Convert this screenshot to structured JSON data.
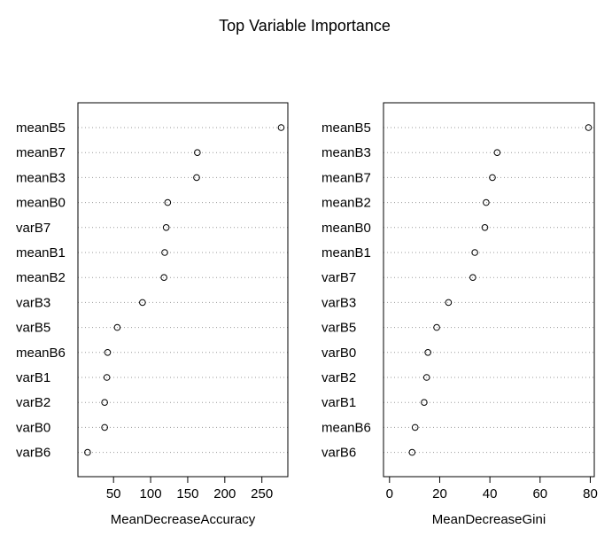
{
  "title": "Top Variable Importance",
  "chart_data": [
    {
      "type": "scatter",
      "style": "dotchart",
      "xlabel": "MeanDecreaseAccuracy",
      "xlim": [
        2,
        285
      ],
      "xticks": [
        50,
        100,
        150,
        200,
        250
      ],
      "grid": "dotted-horizontal",
      "categories": [
        "meanB5",
        "meanB7",
        "meanB3",
        "meanB0",
        "varB7",
        "meanB1",
        "meanB2",
        "varB3",
        "varB5",
        "meanB6",
        "varB1",
        "varB2",
        "varB0",
        "varB6"
      ],
      "values": [
        276,
        163,
        162,
        123,
        121,
        119,
        118,
        89,
        55,
        42,
        41,
        38,
        38,
        15
      ]
    },
    {
      "type": "scatter",
      "style": "dotchart",
      "xlabel": "MeanDecreaseGini",
      "xlim": [
        -2.4,
        81.6
      ],
      "xticks": [
        0,
        20,
        40,
        60,
        80
      ],
      "grid": "dotted-horizontal",
      "categories": [
        "meanB5",
        "meanB3",
        "meanB7",
        "meanB2",
        "meanB0",
        "meanB1",
        "varB7",
        "varB3",
        "varB5",
        "varB0",
        "varB2",
        "varB1",
        "meanB6",
        "varB6"
      ],
      "values": [
        79.3,
        42.9,
        41.0,
        38.5,
        38.0,
        34.0,
        33.2,
        23.5,
        18.8,
        15.3,
        14.8,
        13.8,
        10.2,
        9.0
      ]
    }
  ]
}
